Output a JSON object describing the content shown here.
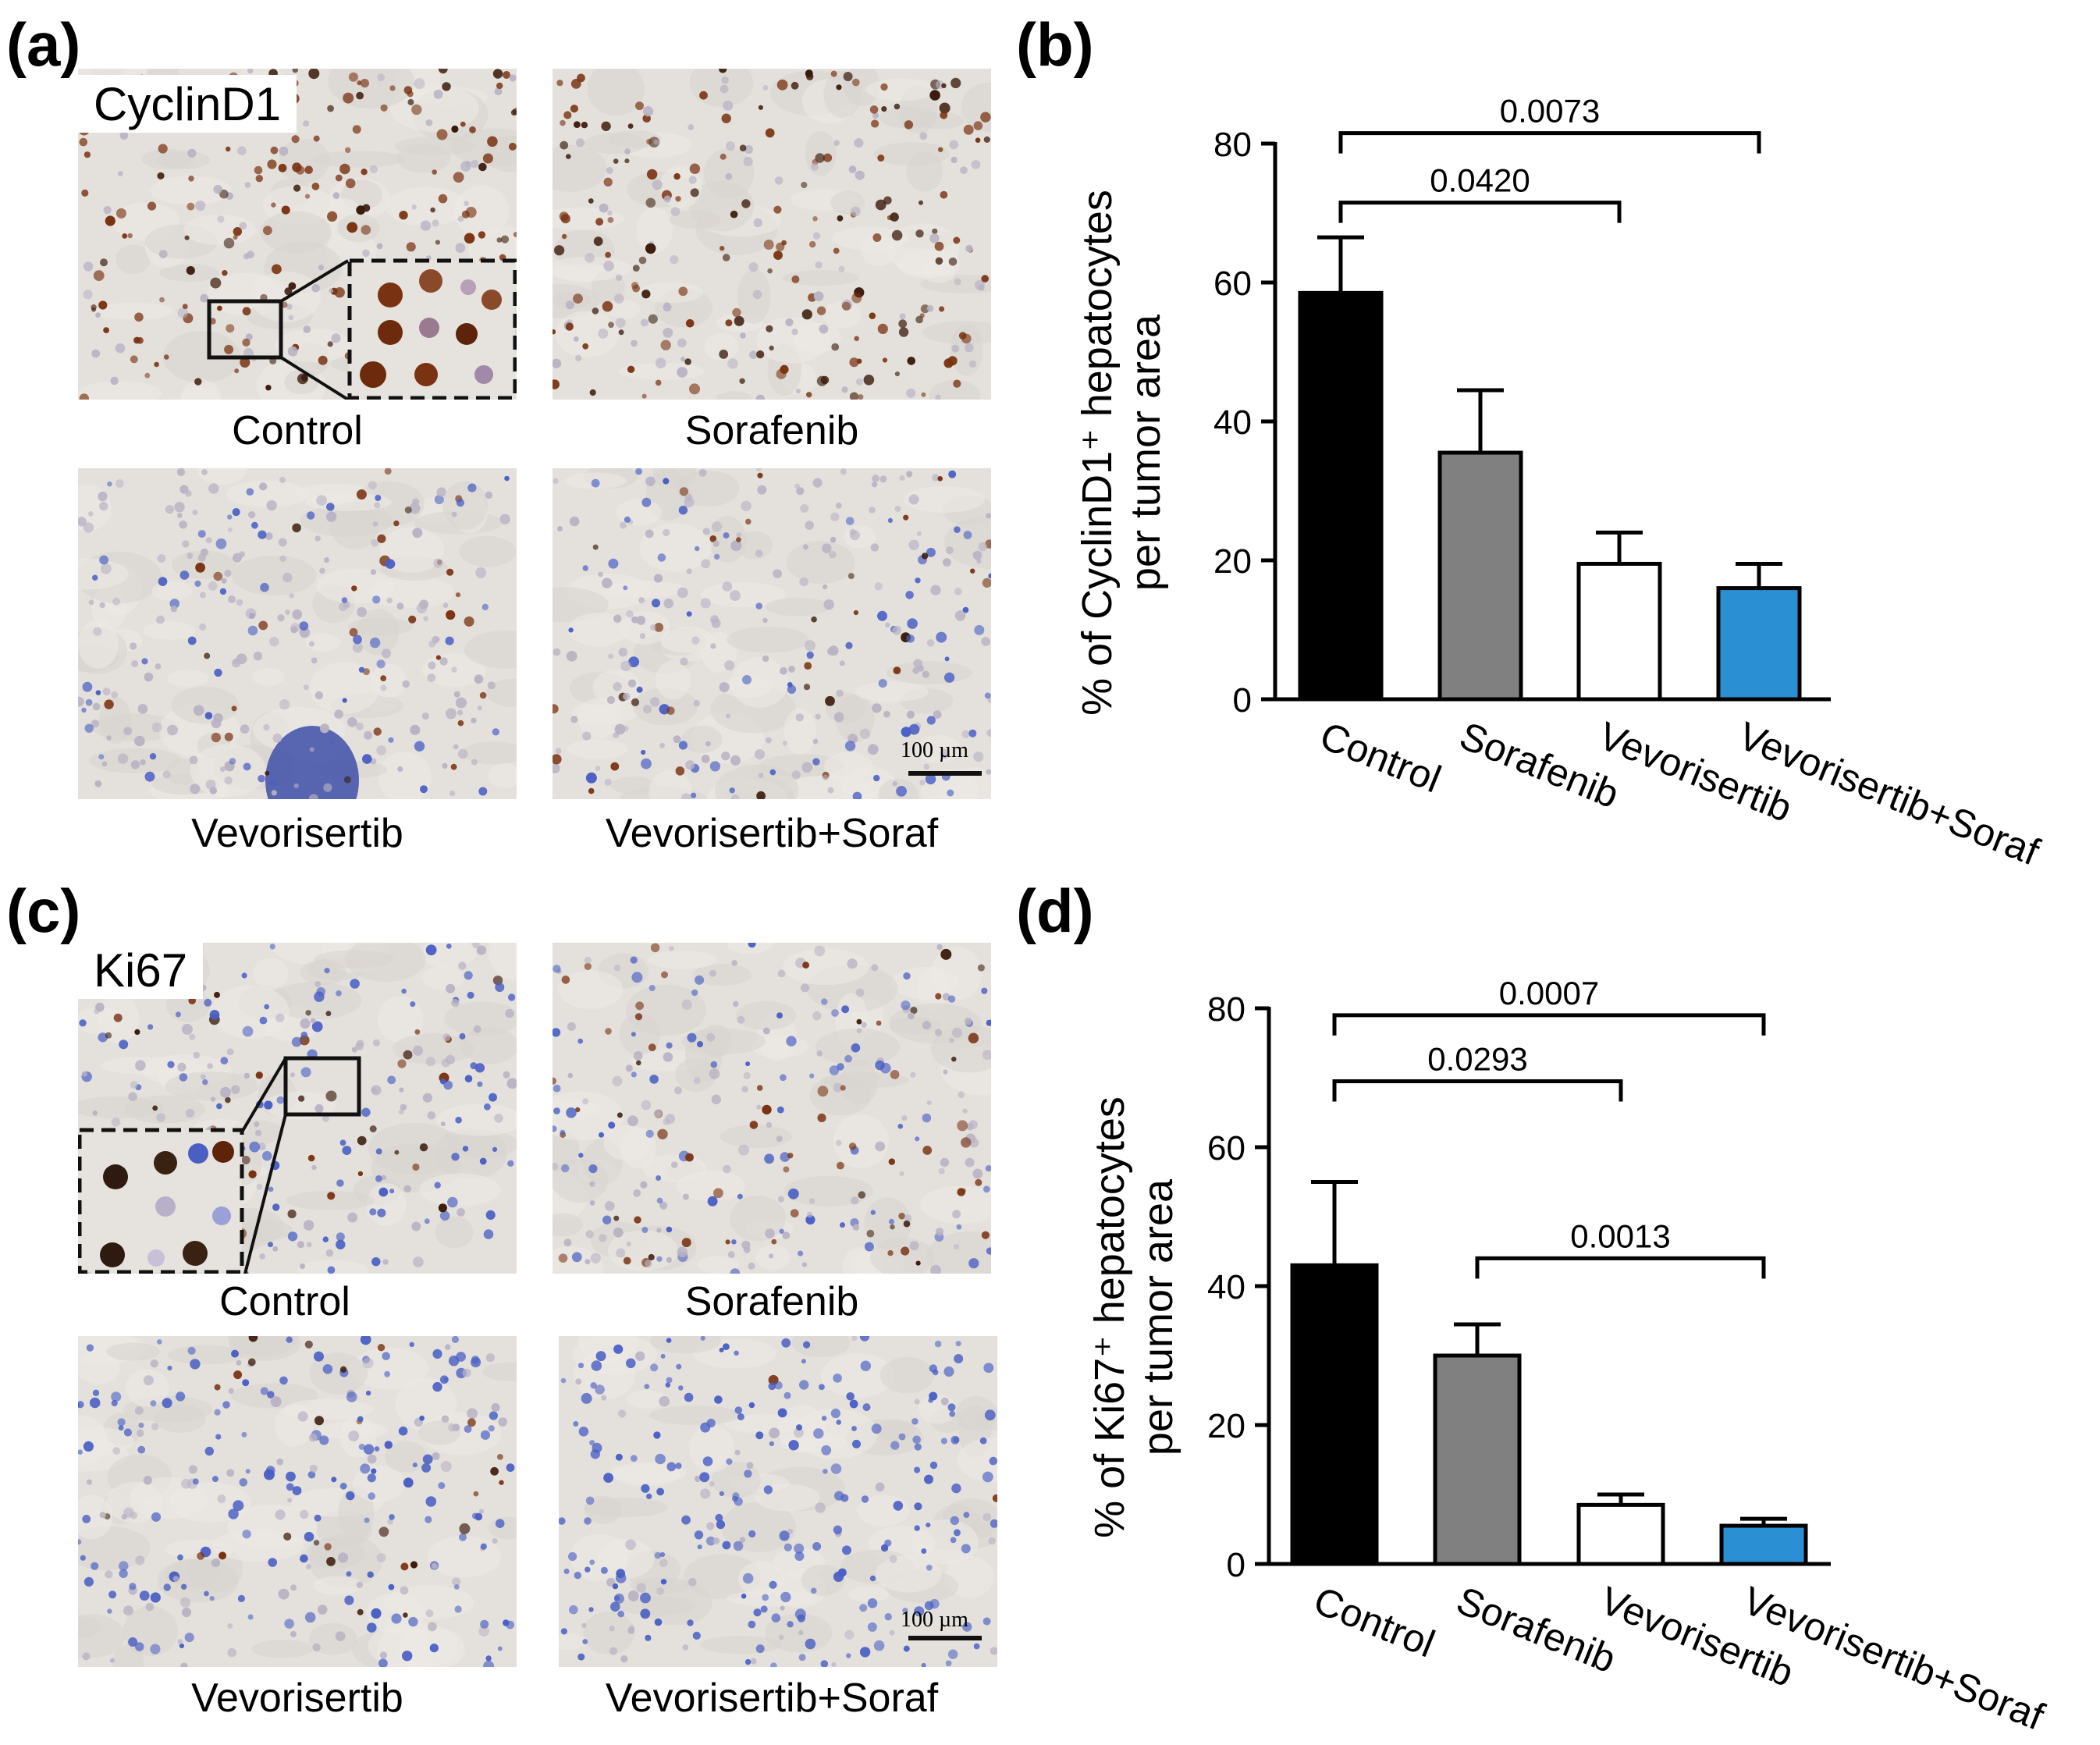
{
  "panels": {
    "a": {
      "letter": "(a)",
      "stain": "CyclinD1",
      "captions": [
        "Control",
        "Sorafenib",
        "Vevorisertib",
        "Vevorisertib+Soraf"
      ],
      "scale_label": "100 µm"
    },
    "b": {
      "letter": "(b)"
    },
    "c": {
      "letter": "(c)",
      "stain": "Ki67",
      "captions": [
        "Control",
        "Sorafenib",
        "Vevorisertib",
        "Vevorisertib+Soraf"
      ],
      "scale_label": "100 µm"
    },
    "d": {
      "letter": "(d)"
    }
  },
  "colors": {
    "control": "#000000",
    "sorafenib": "#808080",
    "vevorisertib": "#ffffff",
    "combo": "#2b8fd4",
    "dab_brown": "#7a3312",
    "hematoxylin_blue": "#4a5fc4",
    "tissue_bg": "#e4e1dc"
  },
  "chart_data": [
    {
      "type": "bar",
      "ylabel": [
        "% of CyclinD1⁺ hepatocytes",
        "per tumor area"
      ],
      "categories": [
        "Control",
        "Sorafenib",
        "Vevorisertib",
        "Vevorisertib+Soraf"
      ],
      "values": [
        58.5,
        35.5,
        19.5,
        16
      ],
      "errors": [
        8,
        9,
        4.5,
        3.5
      ],
      "ylim": [
        0,
        80
      ],
      "yticks": [
        0,
        20,
        40,
        60,
        80
      ],
      "comparisons": [
        {
          "from": 0,
          "to": 2,
          "label": "0.0420",
          "y": 71.5
        },
        {
          "from": 0,
          "to": 3,
          "label": "0.0073",
          "y": 81.5
        }
      ]
    },
    {
      "type": "bar",
      "ylabel": [
        "% of Ki67⁺ hepatocytes",
        "per tumor area"
      ],
      "categories": [
        "Control",
        "Sorafenib",
        "Vevorisertib",
        "Vevorisertib+Soraf"
      ],
      "values": [
        43,
        30,
        8.5,
        5.5
      ],
      "errors": [
        12,
        4.5,
        1.5,
        1
      ],
      "ylim": [
        0,
        80
      ],
      "yticks": [
        0,
        20,
        40,
        60,
        80
      ],
      "comparisons": [
        {
          "from": 0,
          "to": 2,
          "label": "0.0293",
          "y": 69.5
        },
        {
          "from": 0,
          "to": 3,
          "label": "0.0007",
          "y": 79
        },
        {
          "from": 1,
          "to": 3,
          "label": "0.0013",
          "y": 44
        }
      ]
    }
  ]
}
